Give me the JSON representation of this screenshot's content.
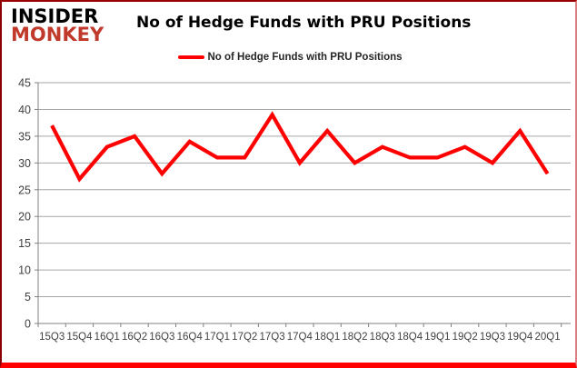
{
  "logo": {
    "line1": "INSIDER",
    "line2": "MONKEY"
  },
  "header": {
    "title": "No of Hedge Funds with PRU Positions"
  },
  "legend": {
    "label": "No of Hedge Funds with PRU Positions"
  },
  "colors": {
    "line": "#ff0000",
    "grid": "#a6a6a6",
    "axis": "#808080",
    "tick_text": "#404040",
    "logo_insider": "#000000",
    "logo_monkey": "#c0392b"
  },
  "chart_data": {
    "type": "line",
    "title": "No of Hedge Funds with PRU Positions",
    "categories": [
      "15Q3",
      "15Q4",
      "16Q1",
      "16Q2",
      "16Q3",
      "16Q4",
      "17Q1",
      "17Q2",
      "17Q3",
      "17Q4",
      "18Q1",
      "18Q2",
      "18Q3",
      "18Q4",
      "19Q1",
      "19Q2",
      "19Q3",
      "19Q4",
      "20Q1"
    ],
    "series": [
      {
        "name": "No of Hedge Funds with PRU Positions",
        "color": "#ff0000",
        "values": [
          37,
          27,
          33,
          35,
          28,
          34,
          31,
          31,
          39,
          30,
          36,
          30,
          33,
          31,
          31,
          33,
          30,
          36,
          28
        ]
      }
    ],
    "xlabel": "",
    "ylabel": "",
    "ylim": [
      0,
      45
    ],
    "yticks": [
      0,
      5,
      10,
      15,
      20,
      25,
      30,
      35,
      40,
      45
    ],
    "grid": true,
    "legend_position": "top-center"
  }
}
